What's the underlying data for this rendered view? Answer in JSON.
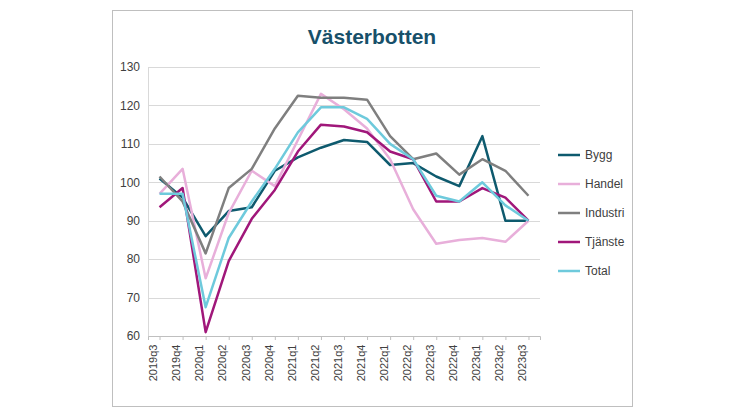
{
  "chart_data": {
    "type": "line",
    "title": "Västerbotten",
    "categories": [
      "2019q3",
      "2019q4",
      "2020q1",
      "2020q2",
      "2020q3",
      "2020q4",
      "2021q1",
      "2021q2",
      "2021q3",
      "2021q4",
      "2022q1",
      "2022q2",
      "2022q3",
      "2022q4",
      "2023q1",
      "2023q2",
      "2023q3"
    ],
    "series": [
      {
        "name": "Bygg",
        "color": "#0e5a6e",
        "values": [
          101,
          96,
          86,
          92.5,
          93.5,
          103,
          106.5,
          109,
          111,
          110.5,
          104.5,
          105,
          101.5,
          99,
          112,
          90,
          90
        ]
      },
      {
        "name": "Handel",
        "color": "#e8afda",
        "values": [
          97,
          103.5,
          75,
          92,
          103,
          99,
          111,
          123,
          119,
          114,
          106,
          93,
          84,
          85,
          85.5,
          84.5,
          90
        ]
      },
      {
        "name": "Industri",
        "color": "#7f7f7f",
        "values": [
          101.5,
          95,
          81.5,
          98.5,
          103.5,
          114,
          122.5,
          122,
          122,
          121.5,
          112,
          106,
          107.5,
          102,
          106,
          103,
          96.5
        ]
      },
      {
        "name": "Tjänste",
        "color": "#a0177a",
        "values": [
          93.5,
          98.5,
          61,
          79.5,
          90.5,
          98,
          108,
          115,
          114.5,
          113,
          108,
          106,
          95,
          95,
          98.5,
          96,
          90
        ]
      },
      {
        "name": "Total",
        "color": "#6ecadc",
        "values": [
          97,
          97,
          67.5,
          85.5,
          95,
          103.5,
          113,
          119.5,
          119.5,
          116.5,
          110,
          106,
          96.5,
          95,
          100,
          94,
          90
        ]
      }
    ],
    "ylim": [
      60,
      130
    ],
    "yticks": [
      60,
      70,
      80,
      90,
      100,
      110,
      120,
      130
    ],
    "grid": true,
    "legend": "right"
  }
}
